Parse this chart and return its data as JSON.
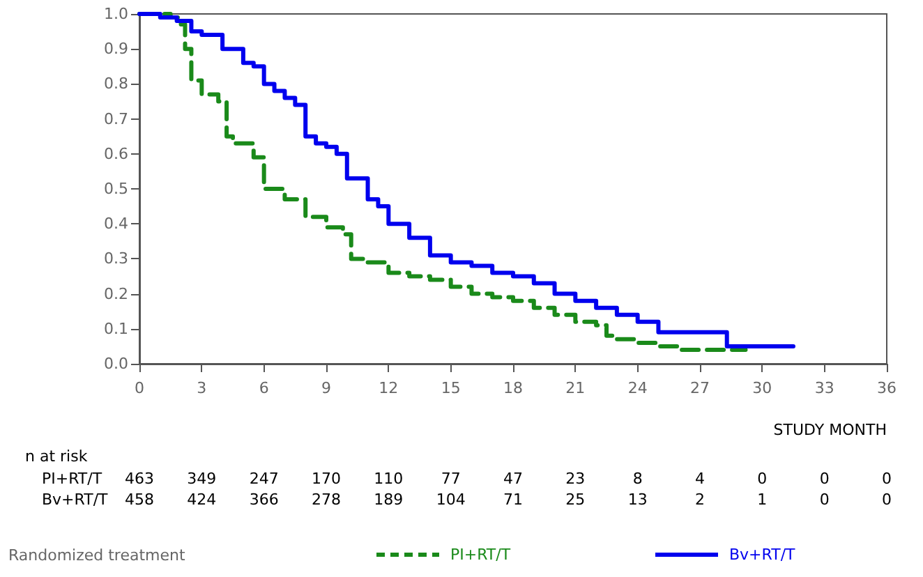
{
  "chart_data": {
    "type": "step",
    "xlabel": "STUDY MONTH",
    "legend_title": "Randomized treatment",
    "legend": "bottom",
    "marker": "none",
    "grid": false,
    "xlim": [
      0,
      36
    ],
    "xticks": [
      0,
      3,
      6,
      9,
      12,
      15,
      18,
      21,
      24,
      27,
      30,
      33,
      36
    ],
    "ylim": [
      0,
      1
    ],
    "yticks": [
      {
        "value": 0,
        "label": "0.0"
      },
      0.1,
      0.2,
      0.3,
      0.4,
      0.5,
      0.6,
      0.7,
      0.8,
      0.9,
      {
        "value": 1,
        "label": "1.0"
      }
    ],
    "series": [
      {
        "name": "PI+RT/T",
        "color": "#1a8a1a",
        "line_style": "dashed",
        "x": [
          0,
          1.5,
          2,
          2.2,
          2.5,
          3,
          3.8,
          4.2,
          4.5,
          5.5,
          6,
          7,
          8,
          9,
          9.8,
          10.2,
          11,
          12,
          13,
          14,
          15,
          16,
          17,
          18,
          19,
          20,
          21,
          22,
          22.5,
          23,
          24,
          25,
          26,
          29.2
        ],
        "values": [
          1,
          0.99,
          0.97,
          0.9,
          0.81,
          0.77,
          0.75,
          0.65,
          0.63,
          0.59,
          0.5,
          0.47,
          0.42,
          0.39,
          0.37,
          0.3,
          0.29,
          0.26,
          0.25,
          0.24,
          0.22,
          0.2,
          0.19,
          0.18,
          0.16,
          0.14,
          0.12,
          0.11,
          0.08,
          0.07,
          0.06,
          0.05,
          0.04,
          0.04
        ]
      },
      {
        "name": "Bv+RT/T",
        "color": "#0000ee",
        "line_style": "solid",
        "x": [
          0,
          1,
          1.8,
          2.5,
          3,
          4,
          5,
          5.5,
          6,
          6.5,
          7,
          7.5,
          8,
          8.5,
          9,
          9.5,
          10,
          11,
          11.5,
          12,
          13,
          14,
          15,
          16,
          17,
          18,
          19,
          20,
          21,
          22,
          23,
          24,
          25,
          28.3,
          31.5
        ],
        "values": [
          1,
          0.99,
          0.98,
          0.95,
          0.94,
          0.9,
          0.86,
          0.85,
          0.8,
          0.78,
          0.76,
          0.74,
          0.65,
          0.63,
          0.62,
          0.6,
          0.53,
          0.47,
          0.45,
          0.4,
          0.36,
          0.31,
          0.29,
          0.28,
          0.26,
          0.25,
          0.23,
          0.2,
          0.18,
          0.16,
          0.14,
          0.12,
          0.09,
          0.05,
          0.05
        ]
      }
    ],
    "annotations": [
      "n at risk",
      "PI+RT/T 463 349 247 170 110 77 47 23 8 4 0 0 0",
      "Bv+RT/T 458 424 366 278 189 104 71 25 13 2 1 0 0"
    ]
  }
}
